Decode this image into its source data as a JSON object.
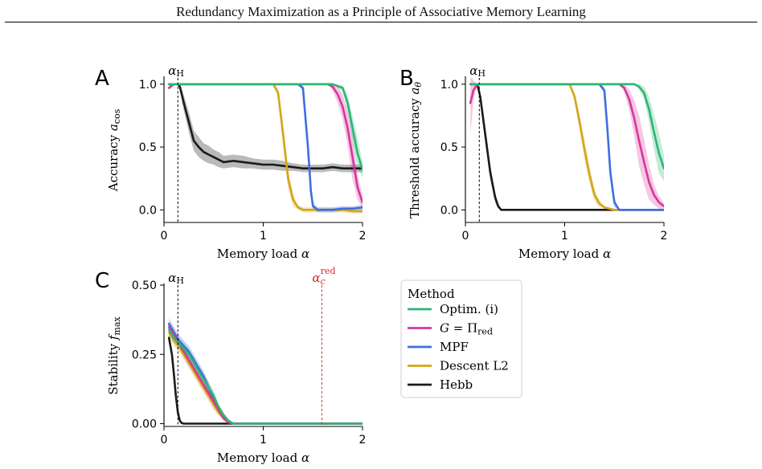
{
  "header": {
    "title": "Redundancy Maximization as a Principle of Associative Memory Learning"
  },
  "methods": [
    {
      "key": "optim",
      "label": "Optim. (i)",
      "color": "#2bb673"
    },
    {
      "key": "gpi",
      "label": "G = Π",
      "label_sub": "red",
      "color": "#d6369a"
    },
    {
      "key": "mpf",
      "label": "MPF",
      "color": "#3c6fe0"
    },
    {
      "key": "l2",
      "label": "Descent L2",
      "color": "#d4a516"
    },
    {
      "key": "hebb",
      "label": "Hebb",
      "color": "#1a1a1a"
    }
  ],
  "legend": {
    "title": "Method",
    "placement": "right of panel C"
  },
  "annotations": {
    "alpha_h": {
      "label": "α",
      "sub": "H",
      "x": 0.14,
      "color": "#000000"
    },
    "alpha_c_red": {
      "label": "α",
      "sub": "c",
      "sup": "red",
      "x": 1.59,
      "color": "#e0201b"
    }
  },
  "chart_data": [
    {
      "panel": "A",
      "type": "line",
      "xlabel": "Memory load α",
      "ylabel": "Accuracy a",
      "ylabel_sub": "cos",
      "xlim": [
        0,
        2
      ],
      "ylim": [
        -0.1,
        1.05
      ],
      "xticks": [
        "0",
        "1",
        "2"
      ],
      "yticks": [
        "0.0",
        "0.5",
        "1.0"
      ],
      "ytick_values": [
        0,
        0.5,
        1
      ],
      "series": [
        {
          "method": "optim",
          "x": [
            0.05,
            1.5,
            1.6,
            1.7,
            1.8,
            1.85,
            1.9,
            1.95,
            2.0
          ],
          "y": [
            1,
            1,
            1,
            1,
            0.97,
            0.85,
            0.65,
            0.45,
            0.32
          ],
          "band": [
            0,
            0,
            0,
            0,
            0.02,
            0.06,
            0.1,
            0.12,
            0.06
          ]
        },
        {
          "method": "gpi",
          "x": [
            0.05,
            0.1,
            0.15,
            1.5,
            1.6,
            1.65,
            1.7,
            1.75,
            1.8,
            1.85,
            1.9,
            1.95,
            2.0
          ],
          "y": [
            0.97,
            1,
            1,
            1,
            1,
            1,
            0.98,
            0.92,
            0.82,
            0.65,
            0.42,
            0.18,
            0.06
          ],
          "band": [
            0.02,
            0,
            0,
            0,
            0,
            0,
            0.03,
            0.07,
            0.1,
            0.14,
            0.18,
            0.1,
            0.05
          ]
        },
        {
          "method": "mpf",
          "x": [
            0.05,
            1.35,
            1.4,
            1.45,
            1.48,
            1.5,
            1.55,
            1.6,
            1.7,
            1.8,
            1.9,
            2.0
          ],
          "y": [
            1,
            1,
            0.97,
            0.5,
            0.15,
            0.03,
            0,
            0,
            0,
            0.01,
            0.01,
            0.02
          ],
          "band": [
            0,
            0,
            0.03,
            0.08,
            0.06,
            0.03,
            0.02,
            0.02,
            0.02,
            0.02,
            0.02,
            0.02
          ]
        },
        {
          "method": "l2",
          "x": [
            0.05,
            1.1,
            1.15,
            1.2,
            1.25,
            1.3,
            1.35,
            1.4,
            1.5,
            1.6,
            1.7,
            1.8,
            1.9,
            2.0
          ],
          "y": [
            1,
            1,
            0.93,
            0.6,
            0.25,
            0.08,
            0.02,
            0,
            0,
            0,
            0,
            0,
            -0.01,
            -0.01
          ],
          "band": [
            0,
            0,
            0.04,
            0.1,
            0.08,
            0.05,
            0.02,
            0.02,
            0.02,
            0.02,
            0.02,
            0.02,
            0.02,
            0.02
          ]
        },
        {
          "method": "hebb",
          "x": [
            0.1,
            0.14,
            0.16,
            0.2,
            0.25,
            0.3,
            0.35,
            0.4,
            0.45,
            0.5,
            0.55,
            0.6,
            0.7,
            0.8,
            0.9,
            1.0,
            1.1,
            1.2,
            1.3,
            1.4,
            1.5,
            1.6,
            1.7,
            1.8,
            1.9,
            2.0
          ],
          "y": [
            1,
            1,
            0.98,
            0.85,
            0.7,
            0.55,
            0.5,
            0.46,
            0.44,
            0.42,
            0.4,
            0.38,
            0.39,
            0.38,
            0.37,
            0.36,
            0.36,
            0.35,
            0.34,
            0.33,
            0.33,
            0.33,
            0.34,
            0.33,
            0.33,
            0.33
          ],
          "band": [
            0,
            0,
            0.03,
            0.06,
            0.08,
            0.08,
            0.08,
            0.07,
            0.07,
            0.06,
            0.06,
            0.05,
            0.05,
            0.05,
            0.04,
            0.04,
            0.04,
            0.04,
            0.03,
            0.03,
            0.03,
            0.03,
            0.03,
            0.03,
            0.03,
            0.03
          ]
        }
      ]
    },
    {
      "panel": "B",
      "type": "line",
      "xlabel": "Memory load α",
      "ylabel": "Threshold accuracy a",
      "ylabel_sub": "θ",
      "xlim": [
        0,
        2
      ],
      "ylim": [
        -0.1,
        1.05
      ],
      "xticks": [
        "0",
        "1",
        "2"
      ],
      "yticks": [
        "0.0",
        "0.5",
        "1.0"
      ],
      "ytick_values": [
        0,
        0.5,
        1
      ],
      "series": [
        {
          "method": "optim",
          "x": [
            0.05,
            1.5,
            1.6,
            1.7,
            1.75,
            1.8,
            1.85,
            1.9,
            1.95,
            2.0
          ],
          "y": [
            1,
            1,
            1,
            1,
            0.98,
            0.93,
            0.8,
            0.62,
            0.45,
            0.33
          ],
          "band": [
            0,
            0,
            0,
            0,
            0.02,
            0.05,
            0.1,
            0.14,
            0.16,
            0.1
          ]
        },
        {
          "method": "gpi",
          "x": [
            0.05,
            0.08,
            0.12,
            1.55,
            1.6,
            1.65,
            1.7,
            1.75,
            1.8,
            1.85,
            1.9,
            1.95,
            2.0
          ],
          "y": [
            0.85,
            0.95,
            1,
            1,
            0.97,
            0.88,
            0.73,
            0.55,
            0.38,
            0.22,
            0.12,
            0.06,
            0.03
          ],
          "band": [
            0.25,
            0.08,
            0,
            0,
            0.03,
            0.08,
            0.14,
            0.2,
            0.18,
            0.14,
            0.08,
            0.05,
            0.02
          ]
        },
        {
          "method": "mpf",
          "x": [
            0.05,
            1.35,
            1.4,
            1.43,
            1.46,
            1.5,
            1.55,
            2.0
          ],
          "y": [
            1,
            1,
            0.95,
            0.65,
            0.3,
            0.06,
            0,
            0
          ],
          "band": [
            0,
            0,
            0.03,
            0.08,
            0.07,
            0.04,
            0,
            0
          ]
        },
        {
          "method": "l2",
          "x": [
            0.05,
            1.05,
            1.1,
            1.15,
            1.2,
            1.25,
            1.3,
            1.35,
            1.4,
            1.5,
            2.0
          ],
          "y": [
            1,
            1,
            0.9,
            0.7,
            0.48,
            0.28,
            0.12,
            0.05,
            0.02,
            0,
            0
          ],
          "band": [
            0,
            0,
            0.03,
            0.06,
            0.08,
            0.07,
            0.05,
            0.03,
            0.01,
            0,
            0
          ]
        },
        {
          "method": "hebb",
          "x": [
            0.1,
            0.12,
            0.15,
            0.2,
            0.25,
            0.3,
            0.33,
            0.36,
            0.4,
            0.6,
            1.0,
            1.5,
            2.0
          ],
          "y": [
            1,
            1,
            0.9,
            0.6,
            0.3,
            0.1,
            0.03,
            0,
            0,
            0,
            0,
            0,
            0
          ],
          "band": [
            0,
            0,
            0.04,
            0.06,
            0.06,
            0.04,
            0.02,
            0,
            0,
            0,
            0,
            0,
            0
          ]
        }
      ]
    },
    {
      "panel": "C",
      "type": "line",
      "xlabel": "Memory load α",
      "ylabel": "Stability f",
      "ylabel_sub": "max",
      "xlim": [
        0,
        2
      ],
      "ylim": [
        -0.01,
        0.5
      ],
      "xticks": [
        "0",
        "1",
        "2"
      ],
      "yticks": [
        "0.00",
        "0.25",
        "0.50"
      ],
      "ytick_values": [
        0,
        0.25,
        0.5
      ],
      "series": [
        {
          "method": "optim",
          "x": [
            0.05,
            0.1,
            0.15,
            0.2,
            0.25,
            0.3,
            0.35,
            0.4,
            0.45,
            0.5,
            0.55,
            0.6,
            0.65,
            0.7,
            0.8,
            1.0,
            1.5,
            2.0
          ],
          "y": [
            0.34,
            0.31,
            0.29,
            0.27,
            0.25,
            0.22,
            0.19,
            0.16,
            0.13,
            0.1,
            0.06,
            0.03,
            0.01,
            0,
            0,
            0,
            0,
            0
          ],
          "band": [
            0.02,
            0.02,
            0.02,
            0.02,
            0.02,
            0.02,
            0.02,
            0.02,
            0.02,
            0.02,
            0.01,
            0.01,
            0.005,
            0,
            0,
            0,
            0,
            0
          ]
        },
        {
          "method": "gpi",
          "x": [
            0.05,
            0.1,
            0.15,
            0.2,
            0.25,
            0.3,
            0.35,
            0.4,
            0.45,
            0.5,
            0.55,
            0.6,
            0.65,
            0.7,
            0.8,
            1.0,
            1.5,
            2.0
          ],
          "y": [
            0.35,
            0.32,
            0.29,
            0.26,
            0.23,
            0.2,
            0.17,
            0.14,
            0.11,
            0.08,
            0.05,
            0.02,
            0.005,
            0,
            0,
            0,
            0,
            0
          ],
          "band": [
            0.02,
            0.02,
            0.02,
            0.02,
            0.02,
            0.02,
            0.02,
            0.02,
            0.02,
            0.02,
            0.01,
            0.01,
            0.005,
            0,
            0,
            0,
            0,
            0
          ]
        },
        {
          "method": "mpf",
          "x": [
            0.05,
            0.1,
            0.15,
            0.2,
            0.25,
            0.3,
            0.35,
            0.4,
            0.45,
            0.5,
            0.55,
            0.6,
            0.65,
            0.7,
            0.8,
            1.0,
            1.5,
            2.0
          ],
          "y": [
            0.36,
            0.33,
            0.3,
            0.28,
            0.26,
            0.23,
            0.2,
            0.17,
            0.13,
            0.09,
            0.06,
            0.03,
            0.01,
            0,
            0,
            0,
            0,
            0
          ],
          "band": [
            0.02,
            0.02,
            0.02,
            0.02,
            0.02,
            0.02,
            0.02,
            0.02,
            0.02,
            0.02,
            0.01,
            0.01,
            0.005,
            0,
            0,
            0,
            0,
            0
          ]
        },
        {
          "method": "l2",
          "x": [
            0.05,
            0.1,
            0.15,
            0.2,
            0.25,
            0.3,
            0.35,
            0.4,
            0.45,
            0.5,
            0.55,
            0.6,
            0.65,
            0.7,
            0.8,
            1.0,
            1.5,
            2.0
          ],
          "y": [
            0.33,
            0.3,
            0.28,
            0.25,
            0.22,
            0.19,
            0.16,
            0.13,
            0.1,
            0.07,
            0.04,
            0.02,
            0.005,
            0,
            0,
            0,
            0,
            0
          ],
          "band": [
            0.02,
            0.02,
            0.02,
            0.02,
            0.02,
            0.02,
            0.02,
            0.02,
            0.02,
            0.02,
            0.01,
            0.01,
            0.005,
            0,
            0,
            0,
            0,
            0
          ]
        },
        {
          "method": "hebb",
          "x": [
            0.05,
            0.08,
            0.1,
            0.12,
            0.14,
            0.16,
            0.18,
            0.2,
            0.3,
            0.5,
            0.6,
            1.0,
            1.5,
            2.0
          ],
          "y": [
            0.31,
            0.25,
            0.18,
            0.1,
            0.04,
            0.01,
            0.002,
            0,
            0,
            0,
            0,
            0,
            0,
            0
          ],
          "band": [
            0.02,
            0.02,
            0.02,
            0.02,
            0.015,
            0.005,
            0,
            0,
            0,
            0,
            0,
            0,
            0,
            0
          ]
        }
      ]
    }
  ]
}
